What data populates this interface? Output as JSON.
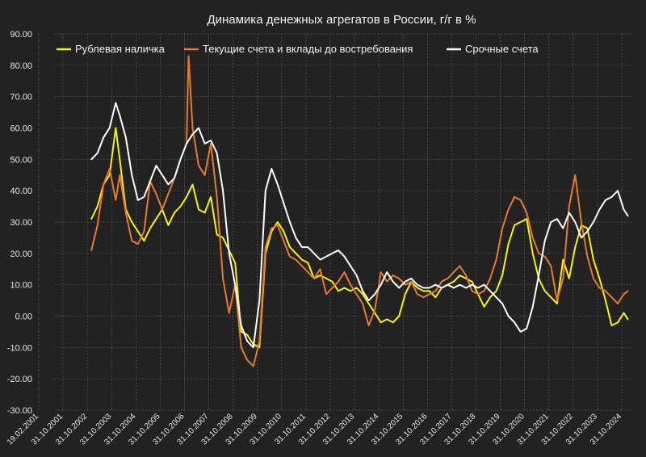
{
  "chart_data": {
    "type": "line",
    "title": "Динамика денежных агрегатов  в России, г/г в %",
    "xlabel": "",
    "ylabel": "",
    "ylim": [
      -30,
      90
    ],
    "y_ticks": [
      90,
      80,
      70,
      60,
      50,
      40,
      30,
      20,
      10,
      0,
      -10,
      -20,
      -30
    ],
    "y_tick_labels": [
      "90.00",
      "80.00",
      "70.00",
      "60.00",
      "50.00",
      "40.00",
      "30.00",
      "20.00",
      "10.00",
      "0.00",
      "-10.00",
      "-20.00",
      "-30.00"
    ],
    "x_tick_labels": [
      "19.02.2001",
      "31.10.2001",
      "31.10.2002",
      "31.10.2003",
      "31.10.2004",
      "31.10.2005",
      "31.10.2006",
      "31.10.2007",
      "31.10.2008",
      "31.10.2009",
      "31.10.2010",
      "31.10.2011",
      "31.10.2012",
      "31.10.2013",
      "31.10.2014",
      "31.10.2015",
      "31.10.2016",
      "31.10.2017",
      "31.10.2018",
      "31.10.2019",
      "31.10.2020",
      "31.10.2021",
      "31.10.2022",
      "31.10.2023",
      "31.10.2024"
    ],
    "grid": true,
    "legend_position": "top",
    "series": [
      {
        "name": "Рублевая наличка",
        "color": "#f5f500",
        "points": [
          [
            "2003-01",
            31
          ],
          [
            "2003-04",
            35
          ],
          [
            "2003-07",
            42
          ],
          [
            "2003-10",
            45
          ],
          [
            "2004-01",
            60
          ],
          [
            "2004-03",
            50
          ],
          [
            "2004-06",
            34
          ],
          [
            "2004-09",
            30
          ],
          [
            "2004-12",
            27
          ],
          [
            "2005-03",
            24
          ],
          [
            "2005-06",
            28
          ],
          [
            "2005-09",
            31
          ],
          [
            "2005-12",
            34
          ],
          [
            "2006-03",
            29
          ],
          [
            "2006-06",
            33
          ],
          [
            "2006-09",
            35
          ],
          [
            "2006-12",
            38
          ],
          [
            "2007-03",
            42
          ],
          [
            "2007-06",
            34
          ],
          [
            "2007-09",
            33
          ],
          [
            "2007-12",
            38
          ],
          [
            "2008-03",
            26
          ],
          [
            "2008-06",
            25
          ],
          [
            "2008-09",
            21
          ],
          [
            "2008-12",
            17
          ],
          [
            "2009-03",
            -5
          ],
          [
            "2009-06",
            -6
          ],
          [
            "2009-09",
            -9
          ],
          [
            "2009-12",
            -10
          ],
          [
            "2010-03",
            20
          ],
          [
            "2010-06",
            27
          ],
          [
            "2010-09",
            30
          ],
          [
            "2010-12",
            27
          ],
          [
            "2011-03",
            22
          ],
          [
            "2011-06",
            20
          ],
          [
            "2011-09",
            18
          ],
          [
            "2011-12",
            17
          ],
          [
            "2012-03",
            12
          ],
          [
            "2012-06",
            13
          ],
          [
            "2012-09",
            12
          ],
          [
            "2012-12",
            11
          ],
          [
            "2013-03",
            8
          ],
          [
            "2013-06",
            9
          ],
          [
            "2013-09",
            8
          ],
          [
            "2013-12",
            9
          ],
          [
            "2014-03",
            7
          ],
          [
            "2014-06",
            4
          ],
          [
            "2014-09",
            1
          ],
          [
            "2014-12",
            -2
          ],
          [
            "2015-03",
            -1
          ],
          [
            "2015-06",
            -2
          ],
          [
            "2015-09",
            0
          ],
          [
            "2015-12",
            7
          ],
          [
            "2016-03",
            11
          ],
          [
            "2016-06",
            9
          ],
          [
            "2016-09",
            8
          ],
          [
            "2016-12",
            8
          ],
          [
            "2017-03",
            6
          ],
          [
            "2017-06",
            9
          ],
          [
            "2017-09",
            10
          ],
          [
            "2017-12",
            11
          ],
          [
            "2018-03",
            13
          ],
          [
            "2018-06",
            12
          ],
          [
            "2018-09",
            11
          ],
          [
            "2018-12",
            7
          ],
          [
            "2019-03",
            3
          ],
          [
            "2019-06",
            6
          ],
          [
            "2019-09",
            8
          ],
          [
            "2019-12",
            13
          ],
          [
            "2020-03",
            23
          ],
          [
            "2020-06",
            29
          ],
          [
            "2020-09",
            30
          ],
          [
            "2020-12",
            31
          ],
          [
            "2021-03",
            20
          ],
          [
            "2021-06",
            12
          ],
          [
            "2021-09",
            8
          ],
          [
            "2021-12",
            6
          ],
          [
            "2022-03",
            4
          ],
          [
            "2022-06",
            18
          ],
          [
            "2022-09",
            12
          ],
          [
            "2022-12",
            22
          ],
          [
            "2023-03",
            29
          ],
          [
            "2023-06",
            28
          ],
          [
            "2023-09",
            18
          ],
          [
            "2023-12",
            12
          ],
          [
            "2024-03",
            5
          ],
          [
            "2024-06",
            -3
          ],
          [
            "2024-09",
            -2
          ],
          [
            "2024-12",
            1
          ],
          [
            "2025-02",
            -1
          ]
        ]
      },
      {
        "name": "Текущие счета и вклады до востребования",
        "color": "#ea7a2a",
        "points": [
          [
            "2003-01",
            21
          ],
          [
            "2003-04",
            29
          ],
          [
            "2003-07",
            42
          ],
          [
            "2003-10",
            47
          ],
          [
            "2004-01",
            37
          ],
          [
            "2004-03",
            45
          ],
          [
            "2004-06",
            33
          ],
          [
            "2004-09",
            24
          ],
          [
            "2004-12",
            23
          ],
          [
            "2005-03",
            27
          ],
          [
            "2005-06",
            43
          ],
          [
            "2005-09",
            39
          ],
          [
            "2005-12",
            34
          ],
          [
            "2006-03",
            39
          ],
          [
            "2006-06",
            44
          ],
          [
            "2006-09",
            50
          ],
          [
            "2006-12",
            55
          ],
          [
            "2007-01",
            83
          ],
          [
            "2007-03",
            60
          ],
          [
            "2007-06",
            48
          ],
          [
            "2007-09",
            45
          ],
          [
            "2007-12",
            55
          ],
          [
            "2008-03",
            38
          ],
          [
            "2008-06",
            12
          ],
          [
            "2008-09",
            1
          ],
          [
            "2008-12",
            10
          ],
          [
            "2009-03",
            -10
          ],
          [
            "2009-06",
            -14
          ],
          [
            "2009-09",
            -16
          ],
          [
            "2009-12",
            -8
          ],
          [
            "2010-03",
            22
          ],
          [
            "2010-06",
            28
          ],
          [
            "2010-09",
            29
          ],
          [
            "2010-12",
            24
          ],
          [
            "2011-03",
            19
          ],
          [
            "2011-06",
            18
          ],
          [
            "2011-09",
            16
          ],
          [
            "2011-12",
            14
          ],
          [
            "2012-03",
            12
          ],
          [
            "2012-06",
            15
          ],
          [
            "2012-09",
            7
          ],
          [
            "2012-12",
            9
          ],
          [
            "2013-03",
            11
          ],
          [
            "2013-06",
            14
          ],
          [
            "2013-09",
            10
          ],
          [
            "2013-12",
            7
          ],
          [
            "2014-03",
            4
          ],
          [
            "2014-06",
            -3
          ],
          [
            "2014-09",
            2
          ],
          [
            "2014-12",
            14
          ],
          [
            "2015-03",
            11
          ],
          [
            "2015-06",
            13
          ],
          [
            "2015-09",
            12
          ],
          [
            "2015-12",
            10
          ],
          [
            "2016-03",
            11
          ],
          [
            "2016-06",
            7
          ],
          [
            "2016-09",
            6
          ],
          [
            "2016-12",
            7
          ],
          [
            "2017-03",
            8
          ],
          [
            "2017-06",
            11
          ],
          [
            "2017-09",
            12
          ],
          [
            "2017-12",
            14
          ],
          [
            "2018-03",
            16
          ],
          [
            "2018-06",
            13
          ],
          [
            "2018-09",
            8
          ],
          [
            "2018-12",
            7
          ],
          [
            "2019-03",
            8
          ],
          [
            "2019-06",
            12
          ],
          [
            "2019-09",
            18
          ],
          [
            "2019-12",
            28
          ],
          [
            "2020-03",
            34
          ],
          [
            "2020-06",
            38
          ],
          [
            "2020-09",
            37
          ],
          [
            "2020-12",
            33
          ],
          [
            "2021-03",
            25
          ],
          [
            "2021-06",
            20
          ],
          [
            "2021-09",
            19
          ],
          [
            "2021-12",
            16
          ],
          [
            "2022-03",
            5
          ],
          [
            "2022-06",
            12
          ],
          [
            "2022-09",
            35
          ],
          [
            "2022-12",
            45
          ],
          [
            "2023-03",
            30
          ],
          [
            "2023-06",
            19
          ],
          [
            "2023-09",
            12
          ],
          [
            "2023-12",
            9
          ],
          [
            "2024-03",
            8
          ],
          [
            "2024-06",
            6
          ],
          [
            "2024-09",
            4
          ],
          [
            "2024-12",
            7
          ],
          [
            "2025-02",
            8
          ]
        ]
      },
      {
        "name": "Срочные счета",
        "color": "#ffffff",
        "points": [
          [
            "2003-01",
            50
          ],
          [
            "2003-04",
            52
          ],
          [
            "2003-07",
            57
          ],
          [
            "2003-10",
            60
          ],
          [
            "2004-01",
            68
          ],
          [
            "2004-03",
            64
          ],
          [
            "2004-06",
            57
          ],
          [
            "2004-09",
            45
          ],
          [
            "2004-12",
            37
          ],
          [
            "2005-03",
            38
          ],
          [
            "2005-06",
            43
          ],
          [
            "2005-09",
            48
          ],
          [
            "2005-12",
            45
          ],
          [
            "2006-03",
            42
          ],
          [
            "2006-06",
            44
          ],
          [
            "2006-09",
            50
          ],
          [
            "2006-12",
            55
          ],
          [
            "2007-03",
            58
          ],
          [
            "2007-06",
            60
          ],
          [
            "2007-09",
            55
          ],
          [
            "2007-12",
            56
          ],
          [
            "2008-03",
            52
          ],
          [
            "2008-06",
            40
          ],
          [
            "2008-09",
            20
          ],
          [
            "2008-12",
            10
          ],
          [
            "2009-03",
            -3
          ],
          [
            "2009-06",
            -8
          ],
          [
            "2009-09",
            -10
          ],
          [
            "2009-12",
            5
          ],
          [
            "2010-03",
            40
          ],
          [
            "2010-06",
            47
          ],
          [
            "2010-09",
            42
          ],
          [
            "2010-12",
            36
          ],
          [
            "2011-03",
            30
          ],
          [
            "2011-06",
            25
          ],
          [
            "2011-09",
            22
          ],
          [
            "2011-12",
            22
          ],
          [
            "2012-03",
            20
          ],
          [
            "2012-06",
            18
          ],
          [
            "2012-09",
            19
          ],
          [
            "2012-12",
            20
          ],
          [
            "2013-03",
            21
          ],
          [
            "2013-06",
            19
          ],
          [
            "2013-09",
            16
          ],
          [
            "2013-12",
            13
          ],
          [
            "2014-03",
            8
          ],
          [
            "2014-06",
            5
          ],
          [
            "2014-09",
            7
          ],
          [
            "2014-12",
            10
          ],
          [
            "2015-03",
            14
          ],
          [
            "2015-06",
            11
          ],
          [
            "2015-09",
            9
          ],
          [
            "2015-12",
            11
          ],
          [
            "2016-03",
            12
          ],
          [
            "2016-06",
            10
          ],
          [
            "2016-09",
            9
          ],
          [
            "2016-12",
            9
          ],
          [
            "2017-03",
            10
          ],
          [
            "2017-06",
            9
          ],
          [
            "2017-09",
            10
          ],
          [
            "2017-12",
            9
          ],
          [
            "2018-03",
            10
          ],
          [
            "2018-06",
            9
          ],
          [
            "2018-09",
            10
          ],
          [
            "2018-12",
            9
          ],
          [
            "2019-03",
            10
          ],
          [
            "2019-06",
            8
          ],
          [
            "2019-09",
            6
          ],
          [
            "2019-12",
            4
          ],
          [
            "2020-03",
            0
          ],
          [
            "2020-06",
            -2
          ],
          [
            "2020-09",
            -5
          ],
          [
            "2020-12",
            -4
          ],
          [
            "2021-03",
            3
          ],
          [
            "2021-06",
            13
          ],
          [
            "2021-09",
            24
          ],
          [
            "2021-12",
            30
          ],
          [
            "2022-03",
            31
          ],
          [
            "2022-06",
            28
          ],
          [
            "2022-09",
            33
          ],
          [
            "2022-12",
            30
          ],
          [
            "2023-03",
            25
          ],
          [
            "2023-06",
            27
          ],
          [
            "2023-09",
            30
          ],
          [
            "2023-12",
            34
          ],
          [
            "2024-03",
            37
          ],
          [
            "2024-06",
            38
          ],
          [
            "2024-09",
            40
          ],
          [
            "2024-12",
            34
          ],
          [
            "2025-02",
            32
          ]
        ]
      }
    ]
  }
}
